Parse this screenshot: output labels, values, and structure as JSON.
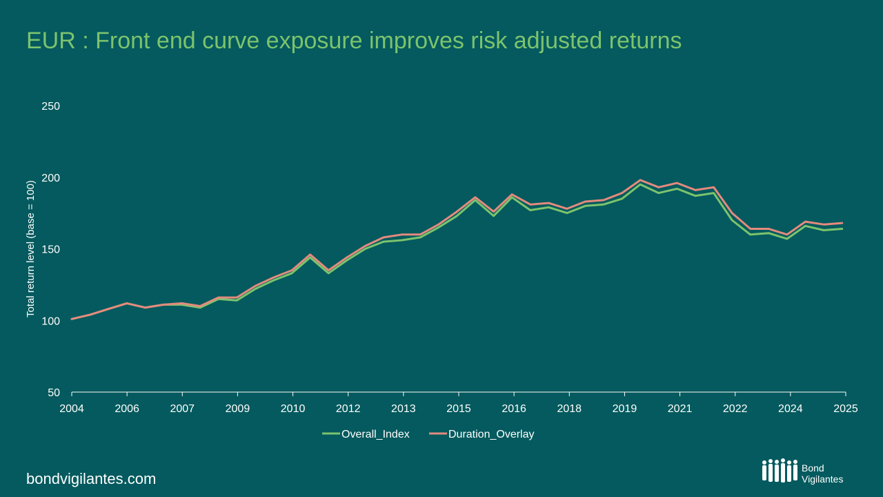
{
  "title": "EUR : Front end curve exposure improves risk adjusted returns",
  "footer": {
    "url": "bondvigilantes.com"
  },
  "logo": {
    "line1": "Bond",
    "line2": "Vigilantes"
  },
  "colors": {
    "background": "#045a5e",
    "title": "#7cc36d",
    "overall": "#7cc36d",
    "duration": "#e58a7e",
    "axis": "#ffffff"
  },
  "chart_data": {
    "type": "line",
    "title": "",
    "xlabel": "",
    "ylabel": "Total return level (base = 100)",
    "ylim": [
      50,
      250
    ],
    "yticks": [
      50,
      100,
      150,
      200,
      250
    ],
    "xlim": [
      2004.0,
      2025.1
    ],
    "xtick_labels": [
      "2004",
      "2006",
      "2007",
      "2009",
      "2010",
      "2012",
      "2013",
      "2015",
      "2016",
      "2018",
      "2019",
      "2021",
      "2022",
      "2024",
      "2025"
    ],
    "grid": false,
    "legend_position": "bottom",
    "x": [
      2004.0,
      2004.5,
      2005.0,
      2005.5,
      2006.0,
      2006.5,
      2007.0,
      2007.5,
      2008.0,
      2008.5,
      2009.0,
      2009.5,
      2010.0,
      2010.5,
      2011.0,
      2011.5,
      2012.0,
      2012.5,
      2013.0,
      2013.5,
      2014.0,
      2014.5,
      2015.0,
      2015.5,
      2016.0,
      2016.5,
      2017.0,
      2017.5,
      2018.0,
      2018.5,
      2019.0,
      2019.5,
      2020.0,
      2020.5,
      2021.0,
      2021.5,
      2022.0,
      2022.5,
      2023.0,
      2023.5,
      2024.0,
      2024.5,
      2025.0
    ],
    "series": [
      {
        "name": "Overall_Index",
        "color": "#7cc36d",
        "values": [
          101,
          104,
          108,
          112,
          109,
          111,
          111,
          109,
          115,
          114,
          122,
          128,
          133,
          144,
          133,
          142,
          150,
          155,
          156,
          158,
          165,
          173,
          184,
          173,
          186,
          177,
          179,
          175,
          180,
          181,
          185,
          195,
          189,
          192,
          187,
          189,
          170,
          160,
          161,
          157,
          166,
          163,
          164
        ]
      },
      {
        "name": "Duration_Overlay",
        "color": "#e58a7e",
        "values": [
          101,
          104,
          108,
          112,
          109,
          111,
          112,
          110,
          116,
          116,
          124,
          130,
          135,
          146,
          135,
          144,
          152,
          158,
          160,
          160,
          167,
          176,
          186,
          176,
          188,
          181,
          182,
          178,
          183,
          184,
          189,
          198,
          193,
          196,
          191,
          193,
          175,
          164,
          164,
          160,
          169,
          167,
          168
        ]
      }
    ]
  }
}
